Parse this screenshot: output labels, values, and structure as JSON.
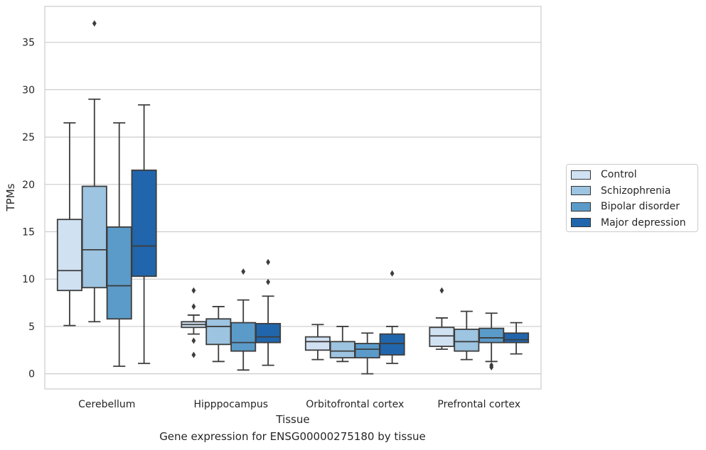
{
  "caption": "Gene expression for ENSG00000275180 by tissue",
  "chart_data": {
    "type": "box",
    "xlabel": "Tissue",
    "ylabel": "TPMs",
    "ylim": [
      -1.6,
      38.8
    ],
    "yticks": [
      0,
      5,
      10,
      15,
      20,
      25,
      30,
      35
    ],
    "grid": true,
    "legend_position": "right",
    "categories": [
      "Cerebellum",
      "Hipppocampus",
      "Orbitofrontal cortex",
      "Prefrontal cortex"
    ],
    "series": [
      {
        "name": "Control",
        "color": "#d0e1f2",
        "boxes": [
          {
            "whislo": 5.1,
            "q1": 8.8,
            "med": 10.9,
            "q3": 16.3,
            "whishi": 26.5,
            "fliers": []
          },
          {
            "whislo": 4.2,
            "q1": 4.9,
            "med": 5.2,
            "q3": 5.5,
            "whishi": 6.2,
            "fliers": [
              8.8,
              7.1,
              3.5,
              2.0
            ]
          },
          {
            "whislo": 1.5,
            "q1": 2.5,
            "med": 3.4,
            "q3": 3.9,
            "whishi": 5.2,
            "fliers": []
          },
          {
            "whislo": 2.6,
            "q1": 2.9,
            "med": 4.0,
            "q3": 4.9,
            "whishi": 5.9,
            "fliers": [
              8.8
            ]
          }
        ]
      },
      {
        "name": "Schizophrenia",
        "color": "#9dc4e0",
        "boxes": [
          {
            "whislo": 5.5,
            "q1": 9.1,
            "med": 13.1,
            "q3": 19.8,
            "whishi": 29.0,
            "fliers": [
              37.0
            ]
          },
          {
            "whislo": 1.3,
            "q1": 3.1,
            "med": 5.0,
            "q3": 5.8,
            "whishi": 7.1,
            "fliers": []
          },
          {
            "whislo": 1.3,
            "q1": 1.7,
            "med": 2.4,
            "q3": 3.4,
            "whishi": 5.0,
            "fliers": []
          },
          {
            "whislo": 1.5,
            "q1": 2.4,
            "med": 3.4,
            "q3": 4.7,
            "whishi": 6.6,
            "fliers": []
          }
        ]
      },
      {
        "name": "Bipolar disorder",
        "color": "#5b9bc9",
        "boxes": [
          {
            "whislo": 0.8,
            "q1": 5.8,
            "med": 9.3,
            "q3": 15.5,
            "whishi": 26.5,
            "fliers": []
          },
          {
            "whislo": 0.4,
            "q1": 2.4,
            "med": 3.3,
            "q3": 5.4,
            "whishi": 7.8,
            "fliers": [
              10.8
            ]
          },
          {
            "whislo": 0.0,
            "q1": 1.7,
            "med": 2.6,
            "q3": 3.2,
            "whishi": 4.3,
            "fliers": []
          },
          {
            "whislo": 1.3,
            "q1": 3.3,
            "med": 3.8,
            "q3": 4.8,
            "whishi": 6.4,
            "fliers": [
              0.9,
              0.7
            ]
          }
        ]
      },
      {
        "name": "Major depression",
        "color": "#2166ac",
        "boxes": [
          {
            "whislo": 1.1,
            "q1": 10.3,
            "med": 13.5,
            "q3": 21.5,
            "whishi": 28.4,
            "fliers": []
          },
          {
            "whislo": 0.9,
            "q1": 3.3,
            "med": 3.9,
            "q3": 5.3,
            "whishi": 8.2,
            "fliers": [
              11.8,
              9.7
            ]
          },
          {
            "whislo": 1.1,
            "q1": 2.0,
            "med": 3.2,
            "q3": 4.2,
            "whishi": 5.0,
            "fliers": [
              10.6
            ]
          },
          {
            "whislo": 2.1,
            "q1": 3.3,
            "med": 3.6,
            "q3": 4.3,
            "whishi": 5.4,
            "fliers": []
          }
        ]
      }
    ]
  }
}
